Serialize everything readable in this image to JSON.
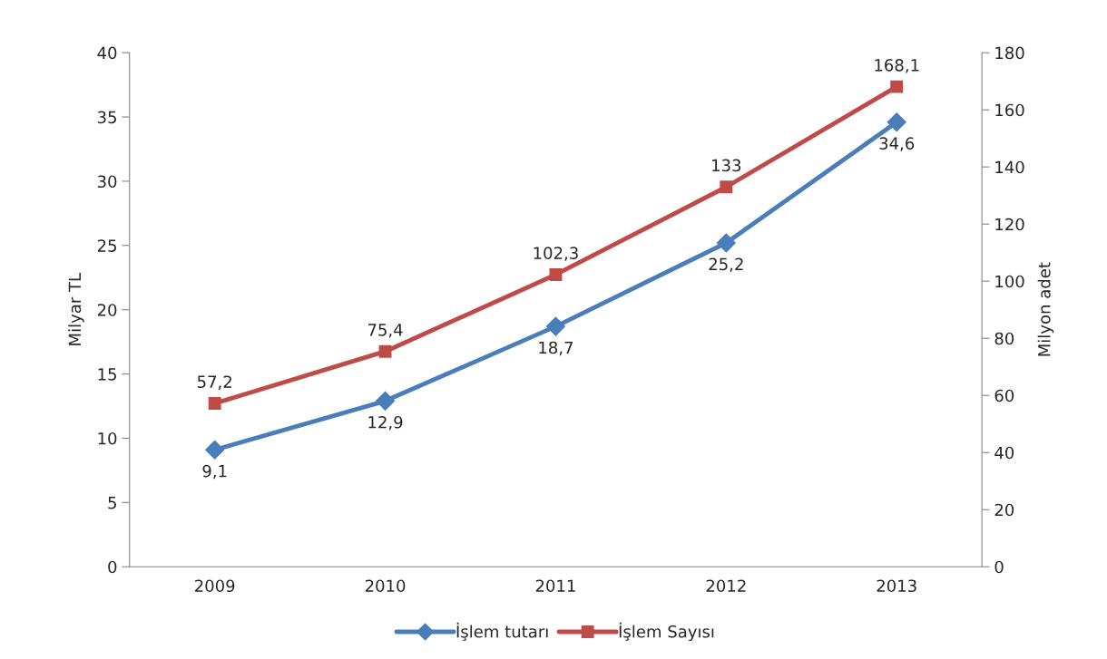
{
  "chart_data": {
    "type": "line",
    "ylabel": "Milyar TL",
    "y2label": "Milyon adet",
    "categories": [
      "2009",
      "2010",
      "2011",
      "2012",
      "2013"
    ],
    "series": [
      {
        "name": "İşlem tutarı",
        "color": "#4a7ebb",
        "values": [
          9.1,
          12.9,
          18.7,
          25.2,
          34.6
        ],
        "value_labels": [
          "9,1",
          "12,9",
          "18,7",
          "25,2",
          "34,6"
        ],
        "marker": "diamond"
      },
      {
        "name": "İşlem Sayısı",
        "color": "#be4b48",
        "values": [
          57.2,
          75.4,
          102.3,
          133,
          168.1
        ],
        "value_labels": [
          "57,2",
          "75,4",
          "102,3",
          "133",
          "168,1"
        ],
        "marker": "square",
        "axis": "y2"
      }
    ],
    "ylim": [
      0,
      40
    ],
    "yticks": [
      0,
      5,
      10,
      15,
      20,
      25,
      30,
      35,
      40
    ],
    "y2lim": [
      0,
      180
    ],
    "y2ticks": [
      0,
      20,
      40,
      60,
      80,
      100,
      120,
      140,
      160,
      180
    ],
    "legend": "bottom",
    "grid": false,
    "line_style": "solid"
  }
}
